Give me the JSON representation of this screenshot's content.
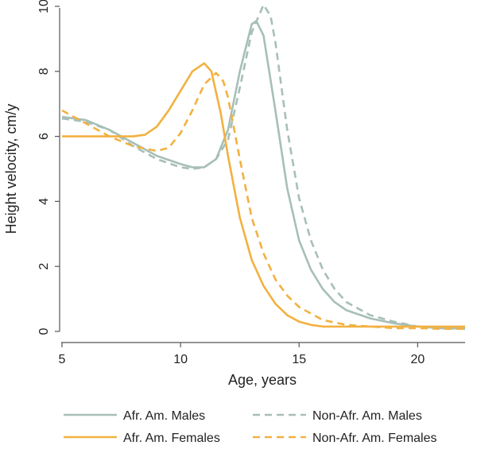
{
  "chart_data": {
    "type": "line",
    "title": "",
    "xlabel": "Age, years",
    "ylabel": "Height velocity, cm/y",
    "xlim": [
      4.9,
      22
    ],
    "ylim": [
      0,
      10
    ],
    "xticks": [
      5,
      10,
      15,
      20
    ],
    "yticks": [
      0,
      2,
      4,
      6,
      8,
      10
    ],
    "grid": false,
    "legend_position": "bottom",
    "series": [
      {
        "name": "Afr. Am. Males",
        "color": "#a7bfb8",
        "dash": "solid",
        "points": [
          [
            5,
            6.6
          ],
          [
            6,
            6.5
          ],
          [
            7,
            6.2
          ],
          [
            8,
            5.8
          ],
          [
            9,
            5.4
          ],
          [
            10,
            5.15
          ],
          [
            10.5,
            5.05
          ],
          [
            11,
            5.05
          ],
          [
            11.5,
            5.3
          ],
          [
            12,
            6.2
          ],
          [
            12.5,
            8.0
          ],
          [
            13,
            9.45
          ],
          [
            13.2,
            9.55
          ],
          [
            13.5,
            9.1
          ],
          [
            14,
            6.8
          ],
          [
            14.5,
            4.4
          ],
          [
            15,
            2.8
          ],
          [
            15.5,
            1.9
          ],
          [
            16,
            1.3
          ],
          [
            16.5,
            0.9
          ],
          [
            17,
            0.65
          ],
          [
            18,
            0.4
          ],
          [
            19,
            0.25
          ],
          [
            20,
            0.15
          ],
          [
            21,
            0.1
          ],
          [
            22,
            0.1
          ]
        ]
      },
      {
        "name": "Non-Afr. Am. Males",
        "color": "#a7bfb8",
        "dash": "dashed",
        "points": [
          [
            5,
            6.55
          ],
          [
            6,
            6.45
          ],
          [
            7,
            6.2
          ],
          [
            8,
            5.7
          ],
          [
            9,
            5.3
          ],
          [
            10,
            5.05
          ],
          [
            10.5,
            5.0
          ],
          [
            11,
            5.05
          ],
          [
            11.5,
            5.3
          ],
          [
            12,
            5.9
          ],
          [
            12.5,
            7.5
          ],
          [
            13,
            9.2
          ],
          [
            13.5,
            10.05
          ],
          [
            13.8,
            9.7
          ],
          [
            14,
            8.9
          ],
          [
            14.5,
            6.2
          ],
          [
            15,
            4.1
          ],
          [
            15.5,
            2.8
          ],
          [
            16,
            1.9
          ],
          [
            16.5,
            1.3
          ],
          [
            17,
            0.9
          ],
          [
            18,
            0.5
          ],
          [
            19,
            0.3
          ],
          [
            20,
            0.15
          ],
          [
            21,
            0.1
          ],
          [
            22,
            0.08
          ]
        ]
      },
      {
        "name": "Afr. Am. Females",
        "color": "#f2b141",
        "dash": "solid",
        "points": [
          [
            5,
            6.0
          ],
          [
            6,
            6.0
          ],
          [
            7,
            6.0
          ],
          [
            8,
            6.0
          ],
          [
            8.5,
            6.05
          ],
          [
            9,
            6.3
          ],
          [
            9.5,
            6.8
          ],
          [
            10,
            7.4
          ],
          [
            10.5,
            8.0
          ],
          [
            11,
            8.25
          ],
          [
            11.3,
            8.0
          ],
          [
            11.7,
            6.7
          ],
          [
            12,
            5.4
          ],
          [
            12.5,
            3.5
          ],
          [
            13,
            2.2
          ],
          [
            13.5,
            1.4
          ],
          [
            14,
            0.85
          ],
          [
            14.5,
            0.5
          ],
          [
            15,
            0.3
          ],
          [
            15.5,
            0.2
          ],
          [
            16,
            0.15
          ],
          [
            17,
            0.15
          ],
          [
            18,
            0.15
          ],
          [
            19,
            0.15
          ],
          [
            20,
            0.15
          ],
          [
            21,
            0.15
          ],
          [
            22,
            0.15
          ]
        ]
      },
      {
        "name": "Non-Afr. Am. Females",
        "color": "#f2b141",
        "dash": "dashed",
        "points": [
          [
            5,
            6.8
          ],
          [
            6,
            6.4
          ],
          [
            7,
            6.0
          ],
          [
            8,
            5.7
          ],
          [
            9,
            5.55
          ],
          [
            9.5,
            5.65
          ],
          [
            10,
            6.1
          ],
          [
            10.5,
            6.8
          ],
          [
            11,
            7.6
          ],
          [
            11.5,
            7.95
          ],
          [
            11.8,
            7.7
          ],
          [
            12,
            7.2
          ],
          [
            12.5,
            5.3
          ],
          [
            13,
            3.5
          ],
          [
            13.5,
            2.4
          ],
          [
            14,
            1.6
          ],
          [
            14.5,
            1.1
          ],
          [
            15,
            0.75
          ],
          [
            16,
            0.35
          ],
          [
            17,
            0.2
          ],
          [
            18,
            0.15
          ],
          [
            19,
            0.1
          ],
          [
            20,
            0.1
          ],
          [
            21,
            0.08
          ],
          [
            22,
            0.08
          ]
        ]
      }
    ]
  }
}
